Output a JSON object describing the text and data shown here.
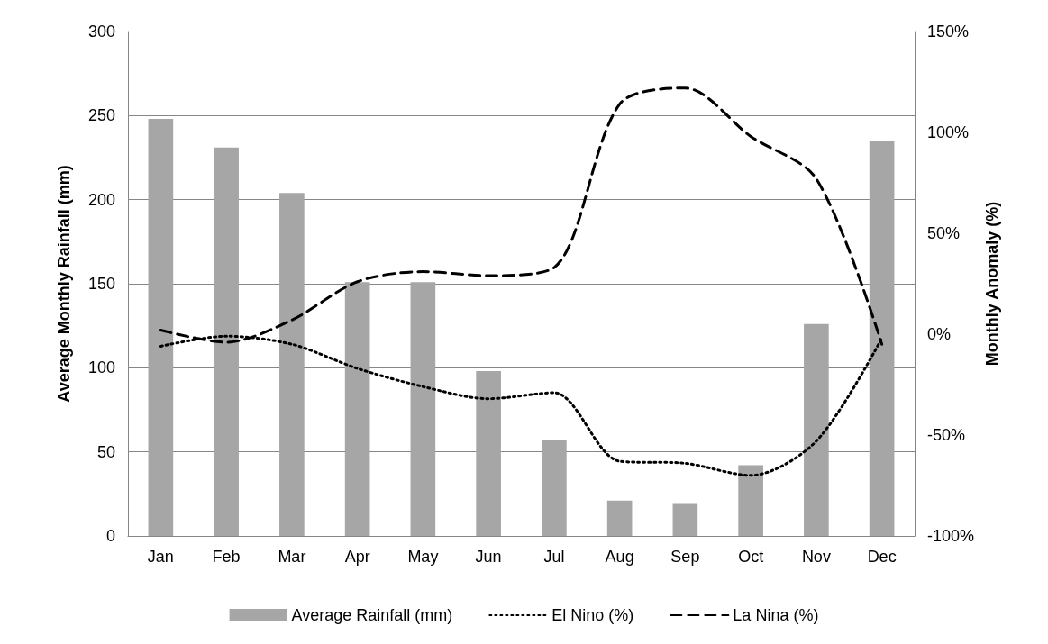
{
  "chart_data": {
    "type": "bar",
    "ylabel": "Average Monthly Rainfall (mm)",
    "y2label": "Monthly Anomaly (%)",
    "categories": [
      "Jan",
      "Feb",
      "Mar",
      "Apr",
      "May",
      "Jun",
      "Jul",
      "Aug",
      "Sep",
      "Oct",
      "Nov",
      "Dec"
    ],
    "series": [
      {
        "name": "Average Rainfall (mm)",
        "color": "#a6a6a6",
        "values": [
          248,
          231,
          204,
          151,
          151,
          98,
          57,
          21,
          19,
          42,
          126,
          235
        ]
      },
      {
        "name": "El Nino (%)",
        "type": "line",
        "axis": "y2",
        "color": "#000000",
        "line_style": "dotted",
        "values": [
          -6,
          -1,
          -5,
          -17,
          -26,
          -32,
          -29,
          -63,
          -64,
          -70,
          -53,
          -2
        ]
      },
      {
        "name": "La Nina (%)",
        "type": "line",
        "axis": "y2",
        "color": "#000000",
        "line_style": "dashed",
        "values": [
          2,
          -4,
          7,
          26,
          31,
          29,
          33,
          114,
          122,
          98,
          77,
          -5
        ]
      }
    ],
    "ylim": [
      0,
      300
    ],
    "yticks": [
      0,
      50,
      100,
      150,
      200,
      250,
      300
    ],
    "y2lim": [
      -100,
      150
    ],
    "y2ticks": [
      {
        "value": -100,
        "label": "-100%"
      },
      {
        "value": -50,
        "label": "-50%"
      },
      {
        "value": 0,
        "label": "0%"
      },
      {
        "value": 50,
        "label": "50%"
      },
      {
        "value": 100,
        "label": "100%"
      },
      {
        "value": 150,
        "label": "150%"
      }
    ],
    "grid": "y",
    "legend": "bottom",
    "marker": "none"
  }
}
